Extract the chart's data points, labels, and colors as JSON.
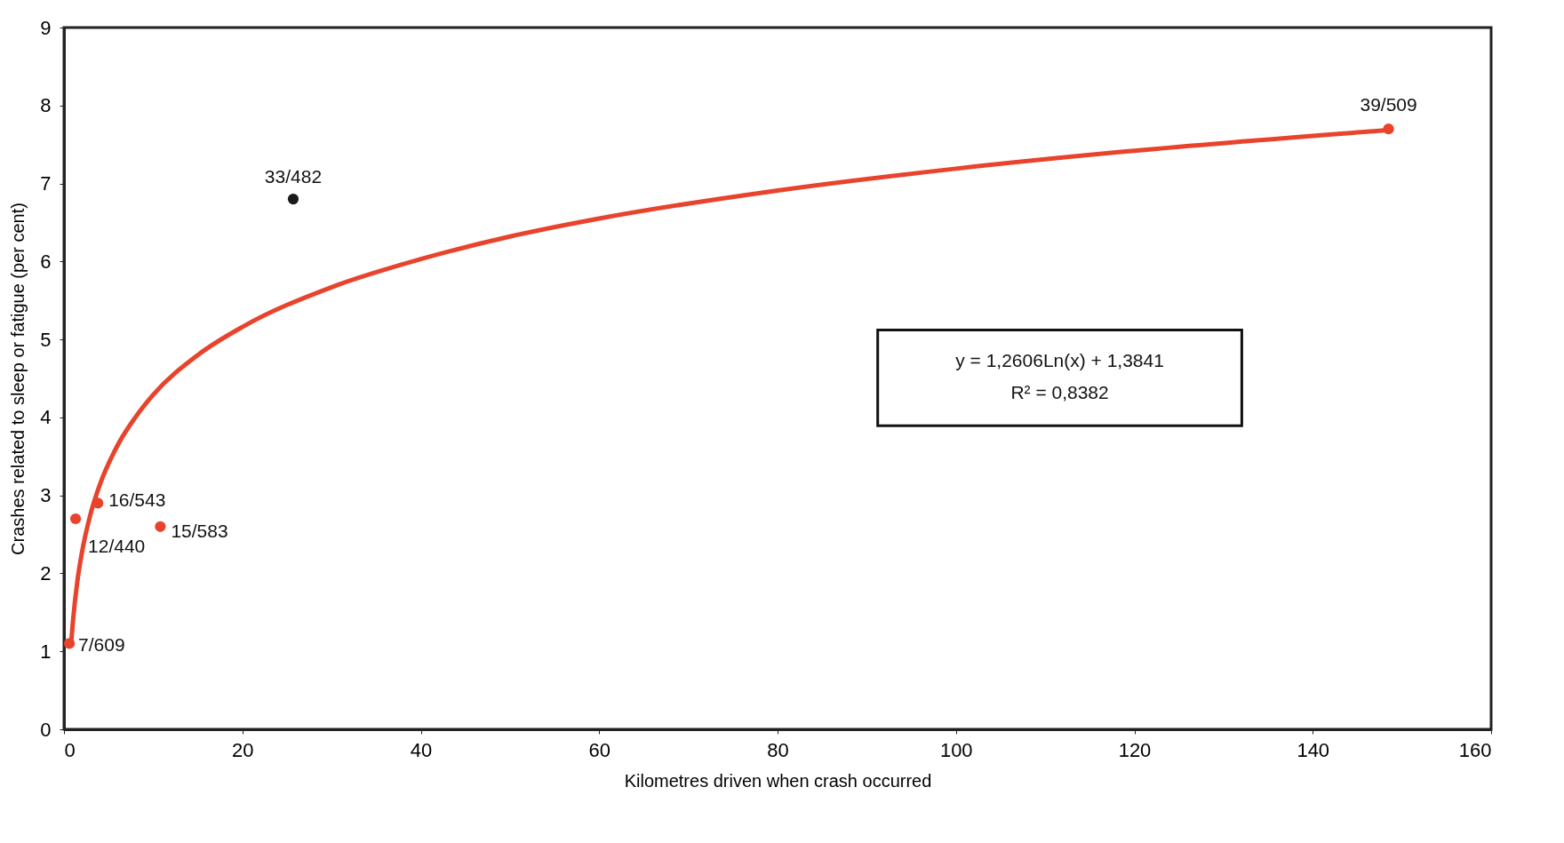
{
  "chart_data": {
    "type": "scatter",
    "xlabel": "Kilometres driven when crash occurred",
    "ylabel": "Crashes related to sleep or fatigue (per cent)",
    "xlim": [
      0,
      160
    ],
    "xticks": [
      0,
      20,
      40,
      60,
      80,
      100,
      120,
      140,
      160
    ],
    "ylim": [
      0,
      9
    ],
    "yticks": [
      0,
      1,
      2,
      3,
      4,
      5,
      6,
      7,
      8,
      9
    ],
    "marker": "circle",
    "series": [
      {
        "x": [
          0.6,
          1.3,
          3.8,
          10.8,
          25.7,
          148.5
        ],
        "values": [
          1.1,
          2.7,
          2.9,
          2.6,
          6.8,
          7.7
        ],
        "colors": [
          "#e8432c",
          "#e8432c",
          "#e8432c",
          "#e8432c",
          "#1a1a1a",
          "#e8432c"
        ]
      },
      {
        "type": "line",
        "color": "#e8432c",
        "marker": "none",
        "x": [
          0.8,
          1,
          1.5,
          2,
          3,
          4,
          6,
          8,
          10,
          15,
          20,
          30,
          40,
          50,
          60,
          80,
          100,
          120,
          149
        ],
        "values": [
          1.1,
          1.38,
          1.9,
          2.26,
          2.77,
          3.13,
          3.64,
          4.0,
          4.29,
          4.8,
          5.16,
          5.67,
          6.03,
          6.32,
          6.55,
          6.91,
          7.19,
          7.42,
          7.69
        ]
      }
    ],
    "annotations": [
      {
        "text": "7/609",
        "x": 0.6,
        "y": 1.1
      },
      {
        "text": "12/440",
        "x": 1.3,
        "y": 2.7
      },
      {
        "text": "16/543",
        "x": 3.8,
        "y": 2.9
      },
      {
        "text": "15/583",
        "x": 10.8,
        "y": 2.6
      },
      {
        "text": "33/482",
        "x": 25.7,
        "y": 6.8
      },
      {
        "text": "39/509",
        "x": 148.5,
        "y": 7.7
      },
      "y = 1,2606Ln(x) + 1,3841",
      "R² = 0,8382"
    ]
  }
}
